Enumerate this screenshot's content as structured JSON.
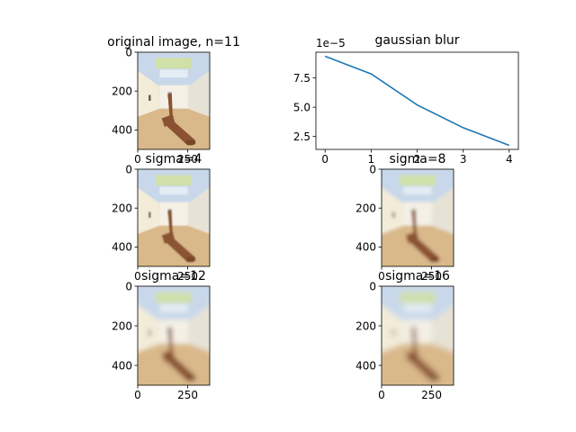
{
  "figure": {
    "background": "#ffffff",
    "text_color": "#000000"
  },
  "chart_data": [
    {
      "type": "image",
      "title": "original image, n=11",
      "blur_sigma": 0,
      "xlim": [
        0,
        360
      ],
      "ylim": [
        500,
        0
      ],
      "xticks": [
        0,
        250
      ],
      "yticks": [
        0,
        200,
        400
      ],
      "colors": {
        "ceiling": "#c8d8ea",
        "wall": "#ece6d4",
        "floor": "#d9b88a",
        "sculpture": "#8a5232",
        "sky": "#cfe0a8"
      }
    },
    {
      "type": "line",
      "title": "gaussian blur",
      "offset_text": "1e−5",
      "x": [
        0,
        1,
        2,
        3,
        4
      ],
      "y": [
        9.35,
        7.85,
        5.2,
        3.25,
        1.75
      ],
      "y_scale": "1e-5",
      "xlim": [
        -0.2,
        4.2
      ],
      "ylim": [
        1.4,
        9.7
      ],
      "xticks": [
        "0",
        "1",
        "2",
        "3",
        "4"
      ],
      "yticks": [
        "2.5",
        "5.0",
        "7.5"
      ],
      "ytick_values": [
        2.5,
        5.0,
        7.5
      ],
      "grid": false,
      "line_color": "#1f77b4"
    },
    {
      "type": "image",
      "title": "sigma=4",
      "blur_sigma": 4,
      "xlim": [
        0,
        360
      ],
      "ylim": [
        500,
        0
      ],
      "xticks": [
        0,
        250
      ],
      "yticks": [
        0,
        200,
        400
      ],
      "colors": {
        "ceiling": "#c8d8ea",
        "wall": "#ece6d4",
        "floor": "#d9b88a",
        "sculpture": "#8a5232",
        "sky": "#cfe0a8"
      }
    },
    {
      "type": "image",
      "title": "sigma=8",
      "blur_sigma": 8,
      "xlim": [
        0,
        360
      ],
      "ylim": [
        500,
        0
      ],
      "xticks": [
        0,
        250
      ],
      "yticks": [
        0,
        200,
        400
      ],
      "colors": {
        "ceiling": "#c8d8ea",
        "wall": "#ece6d4",
        "floor": "#d9b88a",
        "sculpture": "#8a5232",
        "sky": "#cfe0a8"
      }
    },
    {
      "type": "image",
      "title": "sigma=12",
      "blur_sigma": 12,
      "xlim": [
        0,
        360
      ],
      "ylim": [
        500,
        0
      ],
      "xticks": [
        0,
        250
      ],
      "yticks": [
        0,
        200,
        400
      ],
      "colors": {
        "ceiling": "#c8d8ea",
        "wall": "#ece6d4",
        "floor": "#d9b88a",
        "sculpture": "#8a5232",
        "sky": "#cfe0a8"
      }
    },
    {
      "type": "image",
      "title": "sigma=16",
      "blur_sigma": 16,
      "xlim": [
        0,
        360
      ],
      "ylim": [
        500,
        0
      ],
      "xticks": [
        0,
        250
      ],
      "yticks": [
        0,
        200,
        400
      ],
      "colors": {
        "ceiling": "#c8d8ea",
        "wall": "#ece6d4",
        "floor": "#d9b88a",
        "sculpture": "#8a5232",
        "sky": "#cfe0a8"
      }
    }
  ]
}
